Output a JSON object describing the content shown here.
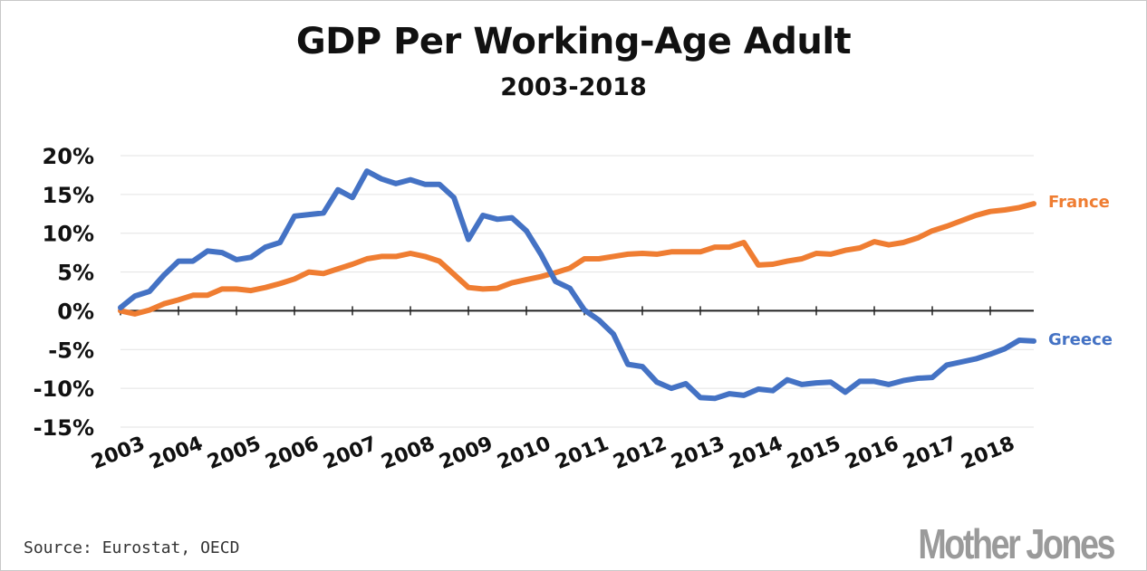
{
  "chart_data": {
    "type": "line",
    "title": "GDP Per Working-Age Adult",
    "subtitle": "2003-2018",
    "xlabel": "",
    "ylabel": "",
    "x_start": 2003,
    "x_end": 2018.75,
    "ylim": [
      -15,
      20
    ],
    "y_ticks": [
      20,
      15,
      10,
      5,
      0,
      -5,
      -10,
      -15
    ],
    "y_tick_labels": [
      "20%",
      "15%",
      "10%",
      "5%",
      "0%",
      "-5%",
      "-10%",
      "-15%"
    ],
    "x_ticks": [
      2003,
      2004,
      2005,
      2006,
      2007,
      2008,
      2009,
      2010,
      2011,
      2012,
      2013,
      2014,
      2015,
      2016,
      2017,
      2018
    ],
    "x_tick_labels": [
      "2003",
      "2004",
      "2005",
      "2006",
      "2007",
      "2008",
      "2009",
      "2010",
      "2011",
      "2012",
      "2013",
      "2014",
      "2015",
      "2016",
      "2017",
      "2018"
    ],
    "grid": true,
    "legend": "direct labels at right end of lines",
    "series": [
      {
        "name": "France",
        "color": "#ef7d32",
        "x": [
          2003,
          2003.25,
          2003.5,
          2003.75,
          2004,
          2004.25,
          2004.5,
          2004.75,
          2005,
          2005.25,
          2005.5,
          2005.75,
          2006,
          2006.25,
          2006.5,
          2006.75,
          2007,
          2007.25,
          2007.5,
          2007.75,
          2008,
          2008.25,
          2008.5,
          2008.75,
          2009,
          2009.25,
          2009.5,
          2009.75,
          2010,
          2010.25,
          2010.5,
          2010.75,
          2011,
          2011.25,
          2011.5,
          2011.75,
          2012,
          2012.25,
          2012.5,
          2012.75,
          2013,
          2013.25,
          2013.5,
          2013.75,
          2014,
          2014.25,
          2014.5,
          2014.75,
          2015,
          2015.25,
          2015.5,
          2015.75,
          2016,
          2016.25,
          2016.5,
          2016.75,
          2017,
          2017.25,
          2017.5,
          2017.75,
          2018,
          2018.25,
          2018.5,
          2018.75
        ],
        "values": [
          0.0,
          -0.4,
          0.1,
          0.9,
          1.4,
          2.0,
          2.0,
          2.8,
          2.8,
          2.6,
          3.0,
          3.5,
          4.1,
          5.0,
          4.8,
          5.4,
          6.0,
          6.7,
          7.0,
          7.0,
          7.4,
          7.0,
          6.4,
          4.7,
          3.0,
          2.8,
          2.9,
          3.6,
          4.0,
          4.4,
          4.9,
          5.5,
          6.7,
          6.7,
          7.0,
          7.3,
          7.4,
          7.3,
          7.6,
          7.6,
          7.6,
          8.2,
          8.2,
          8.8,
          5.9,
          6.0,
          6.4,
          6.7,
          7.4,
          7.3,
          7.8,
          8.1,
          8.9,
          8.5,
          8.8,
          9.4,
          10.3,
          10.9,
          11.6,
          12.3,
          12.8,
          13.0,
          13.3,
          13.8
        ]
      },
      {
        "name": "Greece",
        "color": "#4472c4",
        "x": [
          2003,
          2003.25,
          2003.5,
          2003.75,
          2004,
          2004.25,
          2004.5,
          2004.75,
          2005,
          2005.25,
          2005.5,
          2005.75,
          2006,
          2006.25,
          2006.5,
          2006.75,
          2007,
          2007.25,
          2007.5,
          2007.75,
          2008,
          2008.25,
          2008.5,
          2008.75,
          2009,
          2009.25,
          2009.5,
          2009.75,
          2010,
          2010.25,
          2010.5,
          2010.75,
          2011,
          2011.25,
          2011.5,
          2011.75,
          2012,
          2012.25,
          2012.5,
          2012.75,
          2013,
          2013.25,
          2013.5,
          2013.75,
          2014,
          2014.25,
          2014.5,
          2014.75,
          2015,
          2015.25,
          2015.5,
          2015.75,
          2016,
          2016.25,
          2016.5,
          2016.75,
          2017,
          2017.25,
          2017.5,
          2017.75,
          2018,
          2018.25,
          2018.5,
          2018.75
        ],
        "values": [
          0.4,
          1.9,
          2.5,
          4.6,
          6.4,
          6.4,
          7.7,
          7.5,
          6.6,
          6.9,
          8.2,
          8.8,
          12.2,
          12.4,
          12.6,
          15.6,
          14.6,
          18.0,
          17.0,
          16.4,
          16.9,
          16.3,
          16.3,
          14.6,
          9.2,
          12.3,
          11.8,
          12.0,
          10.3,
          7.3,
          3.8,
          2.9,
          0.1,
          -1.2,
          -3.0,
          -6.9,
          -7.2,
          -9.2,
          -10.0,
          -9.4,
          -11.2,
          -11.3,
          -10.7,
          -10.9,
          -10.1,
          -10.3,
          -8.9,
          -9.5,
          -9.3,
          -9.2,
          -10.5,
          -9.1,
          -9.1,
          -9.5,
          -9.0,
          -8.7,
          -8.6,
          -7.0,
          -6.6,
          -6.2,
          -5.6,
          -4.9,
          -3.8,
          -3.9
        ]
      }
    ],
    "series_labels": {
      "france": "France",
      "greece": "Greece"
    }
  },
  "source": "Source: Eurostat, OECD",
  "logo": "Mother Jones"
}
